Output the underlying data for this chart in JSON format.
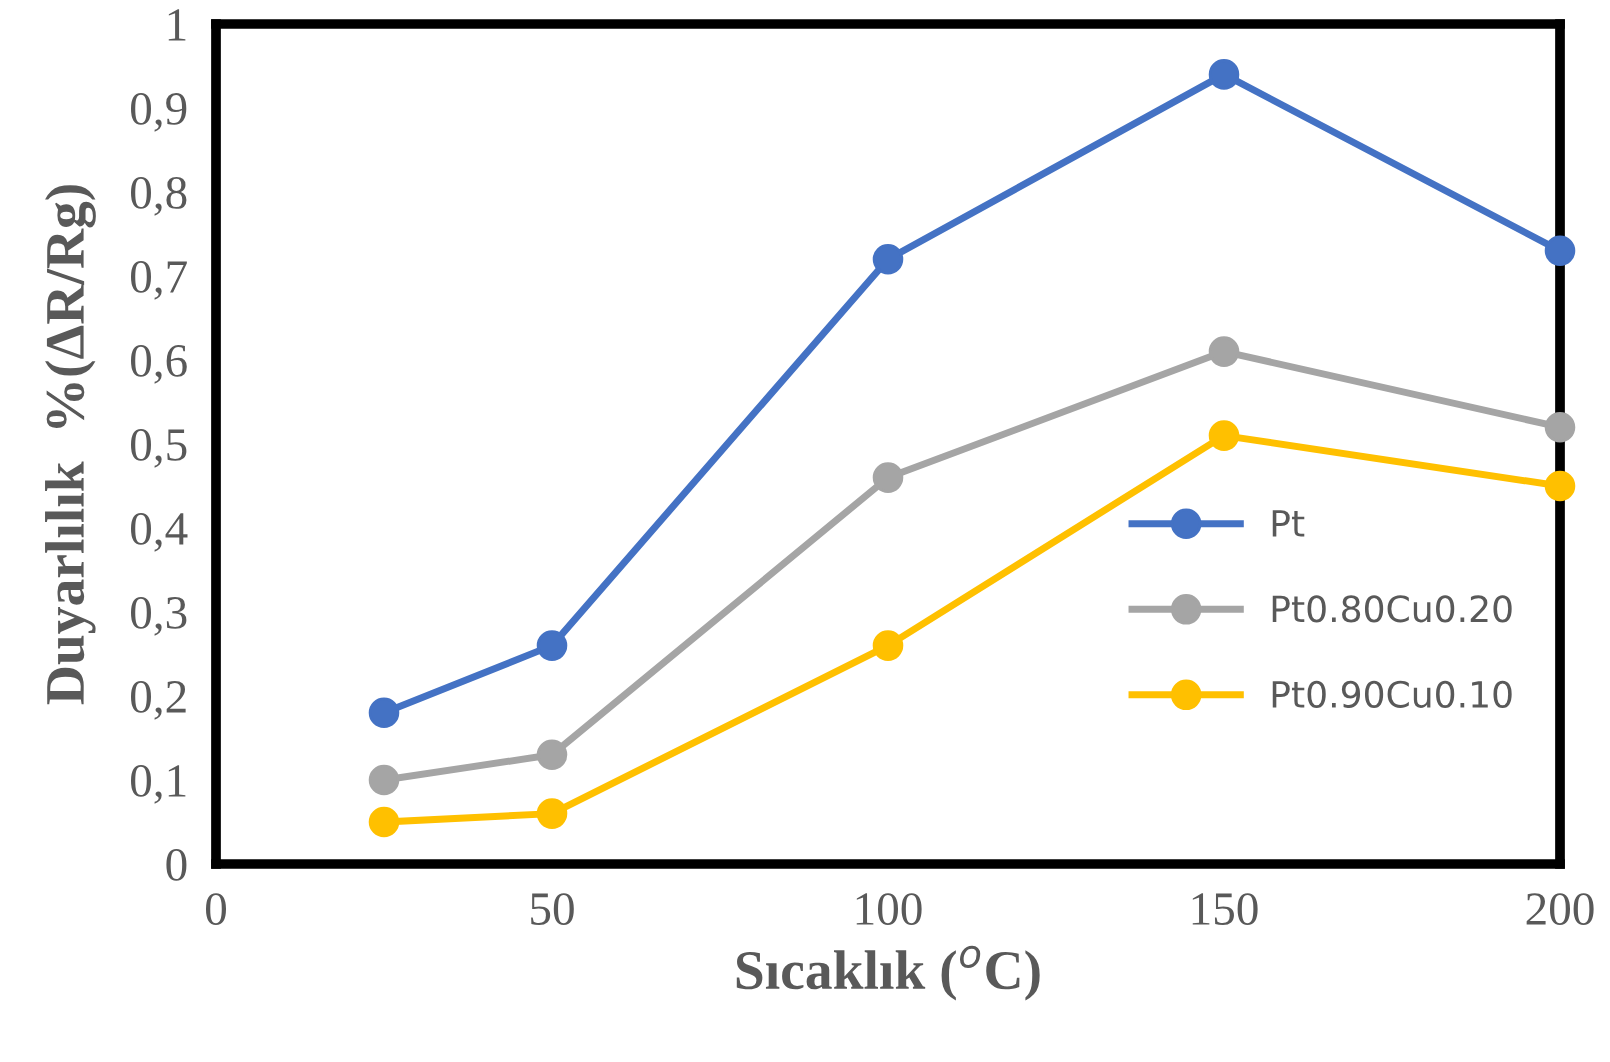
{
  "chart_data": {
    "type": "line",
    "xlabel": "Sıcaklık ($^{o}$C)",
    "ylabel": "Duyarlılık  %(ΔR/Rg)",
    "x": [
      25,
      50,
      100,
      150,
      200
    ],
    "series": [
      {
        "name": "Pt",
        "color": "#4472c4",
        "values": [
          0.18,
          0.26,
          0.72,
          0.94,
          0.73
        ]
      },
      {
        "name": "Pt0.80Cu0.20",
        "color": "#a5a5a5",
        "values": [
          0.1,
          0.13,
          0.46,
          0.61,
          0.52
        ]
      },
      {
        "name": "Pt0.90Cu0.10",
        "color": "#ffc000",
        "values": [
          0.05,
          0.06,
          0.26,
          0.51,
          0.45
        ]
      }
    ],
    "xlim": [
      0,
      200
    ],
    "xticks": [
      0,
      50,
      100,
      150,
      200
    ],
    "ylim": [
      0,
      1
    ],
    "yticks": [
      0,
      {
        "value": 0.1,
        "label": "0,1"
      },
      {
        "value": 0.2,
        "label": "0,2"
      },
      {
        "value": 0.3,
        "label": "0,3"
      },
      {
        "value": 0.4,
        "label": "0,4"
      },
      {
        "value": 0.5,
        "label": "0,5"
      },
      {
        "value": 0.6,
        "label": "0,6"
      },
      {
        "value": 0.7,
        "label": "0,7"
      },
      {
        "value": 0.8,
        "label": "0,8"
      },
      {
        "value": 0.9,
        "label": "0,9"
      },
      1
    ],
    "grid": false,
    "legend": "right",
    "marker": "circle",
    "line_style": "solid"
  }
}
